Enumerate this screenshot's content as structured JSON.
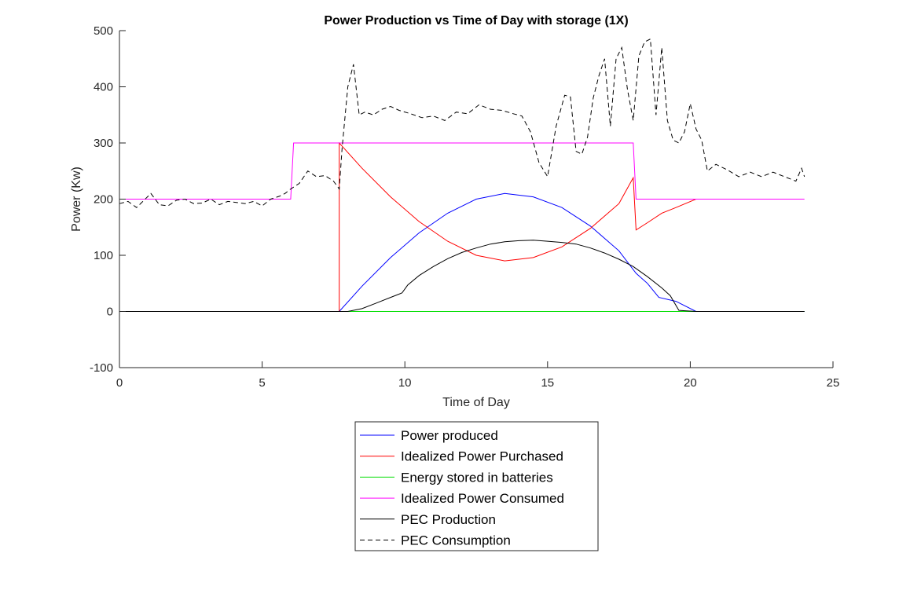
{
  "chart_data": {
    "type": "line",
    "title": "Power Production vs Time of Day with storage (1X)",
    "xlabel": "Time of Day",
    "ylabel": "Power (Kw)",
    "xlim": [
      0,
      25
    ],
    "ylim": [
      -100,
      500
    ],
    "xticks": [
      0,
      5,
      10,
      15,
      20,
      25
    ],
    "yticks": [
      -100,
      0,
      100,
      200,
      300,
      400,
      500
    ],
    "grid": false,
    "legend_position": "below-center",
    "series": [
      {
        "name": "Power produced",
        "color": "#0000ff",
        "dash": "solid",
        "points": [
          [
            0,
            0
          ],
          [
            7.7,
            0
          ],
          [
            8.5,
            45
          ],
          [
            9.5,
            96
          ],
          [
            10.5,
            140
          ],
          [
            11.5,
            175
          ],
          [
            12.5,
            200
          ],
          [
            13.5,
            210
          ],
          [
            14.5,
            204
          ],
          [
            15.5,
            185
          ],
          [
            16.5,
            152
          ],
          [
            17.5,
            108
          ],
          [
            18.1,
            68
          ],
          [
            18.5,
            50
          ],
          [
            18.9,
            25
          ],
          [
            19.5,
            18
          ],
          [
            20.2,
            0
          ],
          [
            24,
            0
          ]
        ]
      },
      {
        "name": "Idealized Power Purchased",
        "color": "#ff0000",
        "dash": "solid",
        "points": [
          [
            0,
            0
          ],
          [
            7.7,
            0
          ],
          [
            7.7,
            300
          ],
          [
            8.5,
            255
          ],
          [
            9.5,
            204
          ],
          [
            10.5,
            160
          ],
          [
            11.5,
            125
          ],
          [
            12.5,
            100
          ],
          [
            13.5,
            90
          ],
          [
            14.5,
            96
          ],
          [
            15.5,
            115
          ],
          [
            16.5,
            148
          ],
          [
            17.5,
            192
          ],
          [
            18.0,
            238
          ],
          [
            18.1,
            145
          ],
          [
            18.5,
            158
          ],
          [
            19.0,
            175
          ],
          [
            19.5,
            185
          ],
          [
            20.2,
            200
          ]
        ]
      },
      {
        "name": "Energy stored in batteries",
        "color": "#00dd00",
        "dash": "solid",
        "points": [
          [
            0,
            0
          ],
          [
            24,
            0
          ]
        ]
      },
      {
        "name": "Idealized Power Consumed",
        "color": "#ff00ff",
        "dash": "solid",
        "points": [
          [
            0,
            200
          ],
          [
            6.0,
            200
          ],
          [
            6.1,
            300
          ],
          [
            18.0,
            300
          ],
          [
            18.1,
            200
          ],
          [
            24,
            200
          ]
        ]
      },
      {
        "name": "PEC Production",
        "color": "#000000",
        "dash": "solid",
        "points": [
          [
            0,
            0
          ],
          [
            8.0,
            0
          ],
          [
            8.5,
            5
          ],
          [
            9.0,
            15
          ],
          [
            9.5,
            25
          ],
          [
            9.9,
            33
          ],
          [
            10.1,
            47
          ],
          [
            10.5,
            64
          ],
          [
            11.0,
            80
          ],
          [
            11.5,
            94
          ],
          [
            12.0,
            105
          ],
          [
            12.5,
            113
          ],
          [
            13.0,
            120
          ],
          [
            13.5,
            124
          ],
          [
            14.0,
            126
          ],
          [
            14.5,
            127
          ],
          [
            15.0,
            125
          ],
          [
            15.5,
            123
          ],
          [
            16.0,
            120
          ],
          [
            16.5,
            113
          ],
          [
            17.0,
            104
          ],
          [
            17.5,
            93
          ],
          [
            18.0,
            80
          ],
          [
            18.5,
            62
          ],
          [
            19.0,
            42
          ],
          [
            19.3,
            28
          ],
          [
            19.6,
            2
          ],
          [
            20.2,
            0
          ],
          [
            24,
            0
          ]
        ]
      },
      {
        "name": "PEC Consumption",
        "color": "#000000",
        "dash": "dashed",
        "points": [
          [
            0,
            192
          ],
          [
            0.3,
            196
          ],
          [
            0.6,
            185
          ],
          [
            0.9,
            200
          ],
          [
            1.1,
            210
          ],
          [
            1.4,
            190
          ],
          [
            1.7,
            188
          ],
          [
            2.0,
            198
          ],
          [
            2.3,
            200
          ],
          [
            2.6,
            192
          ],
          [
            2.9,
            193
          ],
          [
            3.2,
            200
          ],
          [
            3.5,
            190
          ],
          [
            3.8,
            196
          ],
          [
            4.1,
            194
          ],
          [
            4.4,
            192
          ],
          [
            4.7,
            196
          ],
          [
            5.0,
            188
          ],
          [
            5.3,
            200
          ],
          [
            5.6,
            205
          ],
          [
            5.8,
            210
          ],
          [
            6.0,
            218
          ],
          [
            6.3,
            228
          ],
          [
            6.6,
            250
          ],
          [
            6.9,
            240
          ],
          [
            7.2,
            242
          ],
          [
            7.5,
            232
          ],
          [
            7.7,
            218
          ],
          [
            7.8,
            290
          ],
          [
            8.0,
            400
          ],
          [
            8.2,
            440
          ],
          [
            8.4,
            350
          ],
          [
            8.6,
            355
          ],
          [
            8.9,
            350
          ],
          [
            9.2,
            360
          ],
          [
            9.5,
            365
          ],
          [
            9.8,
            358
          ],
          [
            10.2,
            352
          ],
          [
            10.6,
            345
          ],
          [
            11.0,
            348
          ],
          [
            11.4,
            340
          ],
          [
            11.8,
            355
          ],
          [
            12.2,
            352
          ],
          [
            12.6,
            368
          ],
          [
            13.0,
            360
          ],
          [
            13.4,
            358
          ],
          [
            13.8,
            352
          ],
          [
            14.1,
            348
          ],
          [
            14.4,
            320
          ],
          [
            14.7,
            265
          ],
          [
            15.0,
            240
          ],
          [
            15.3,
            330
          ],
          [
            15.6,
            385
          ],
          [
            15.8,
            382
          ],
          [
            16.0,
            285
          ],
          [
            16.2,
            280
          ],
          [
            16.4,
            310
          ],
          [
            16.6,
            380
          ],
          [
            16.8,
            420
          ],
          [
            17.0,
            450
          ],
          [
            17.2,
            330
          ],
          [
            17.4,
            450
          ],
          [
            17.6,
            470
          ],
          [
            17.8,
            395
          ],
          [
            18.0,
            340
          ],
          [
            18.2,
            455
          ],
          [
            18.4,
            480
          ],
          [
            18.6,
            485
          ],
          [
            18.8,
            350
          ],
          [
            19.0,
            470
          ],
          [
            19.2,
            340
          ],
          [
            19.4,
            305
          ],
          [
            19.6,
            300
          ],
          [
            19.8,
            320
          ],
          [
            20.0,
            370
          ],
          [
            20.2,
            325
          ],
          [
            20.4,
            305
          ],
          [
            20.6,
            250
          ],
          [
            20.9,
            262
          ],
          [
            21.3,
            252
          ],
          [
            21.7,
            240
          ],
          [
            22.1,
            248
          ],
          [
            22.5,
            240
          ],
          [
            22.9,
            248
          ],
          [
            23.3,
            240
          ],
          [
            23.7,
            232
          ],
          [
            23.9,
            255
          ],
          [
            24.0,
            240
          ]
        ]
      }
    ]
  }
}
